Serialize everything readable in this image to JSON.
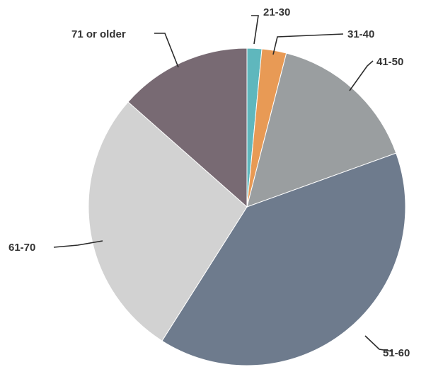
{
  "chart_data": {
    "type": "pie",
    "categories": [
      "21-30",
      "31-40",
      "41-50",
      "51-60",
      "61-70",
      "71 or older"
    ],
    "values": [
      1.5,
      2.5,
      15.5,
      39.5,
      27.5,
      13.5
    ],
    "colors": [
      "#5fb7bd",
      "#e89a55",
      "#9a9ea0",
      "#6e7b8d",
      "#d2d2d2",
      "#786a73"
    ],
    "title": "",
    "legend": "none",
    "start_angle_deg": 0,
    "direction": "clockwise"
  }
}
